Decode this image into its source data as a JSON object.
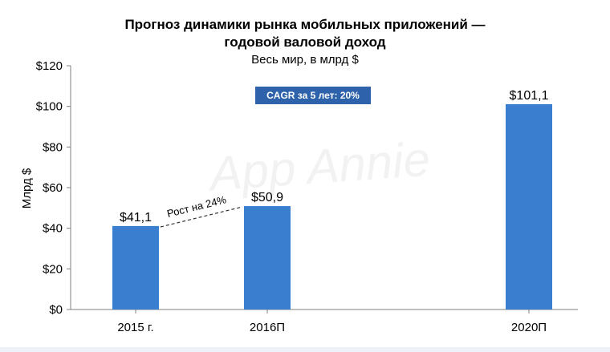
{
  "chart_data": {
    "type": "bar",
    "title_line1": "Прогноз динамики рынка мобильных приложений —",
    "title_line2": "годовой валовой доход",
    "subtitle": "Весь мир, в млрд $",
    "ylabel": "Млрд $",
    "xlabel": "",
    "ylim": [
      0,
      120
    ],
    "yticks": [
      0,
      20,
      40,
      60,
      80,
      100,
      120
    ],
    "ytick_labels": [
      "$0",
      "$20",
      "$40",
      "$60",
      "$80",
      "$100",
      "$120"
    ],
    "categories": [
      "2015 г.",
      "2016П",
      "2020П"
    ],
    "values": [
      41.1,
      50.9,
      101.1
    ],
    "value_labels": [
      "$41,1",
      "$50,9",
      "$101,1"
    ],
    "bar_color": "#3a7ed0",
    "grid": false,
    "annotations": {
      "growth_label": "Рост на 24%",
      "cagr_badge": "CAGR за 5 лет: 20%",
      "cagr_badge_color": "#2e63ac"
    },
    "watermark": "App Annie"
  }
}
